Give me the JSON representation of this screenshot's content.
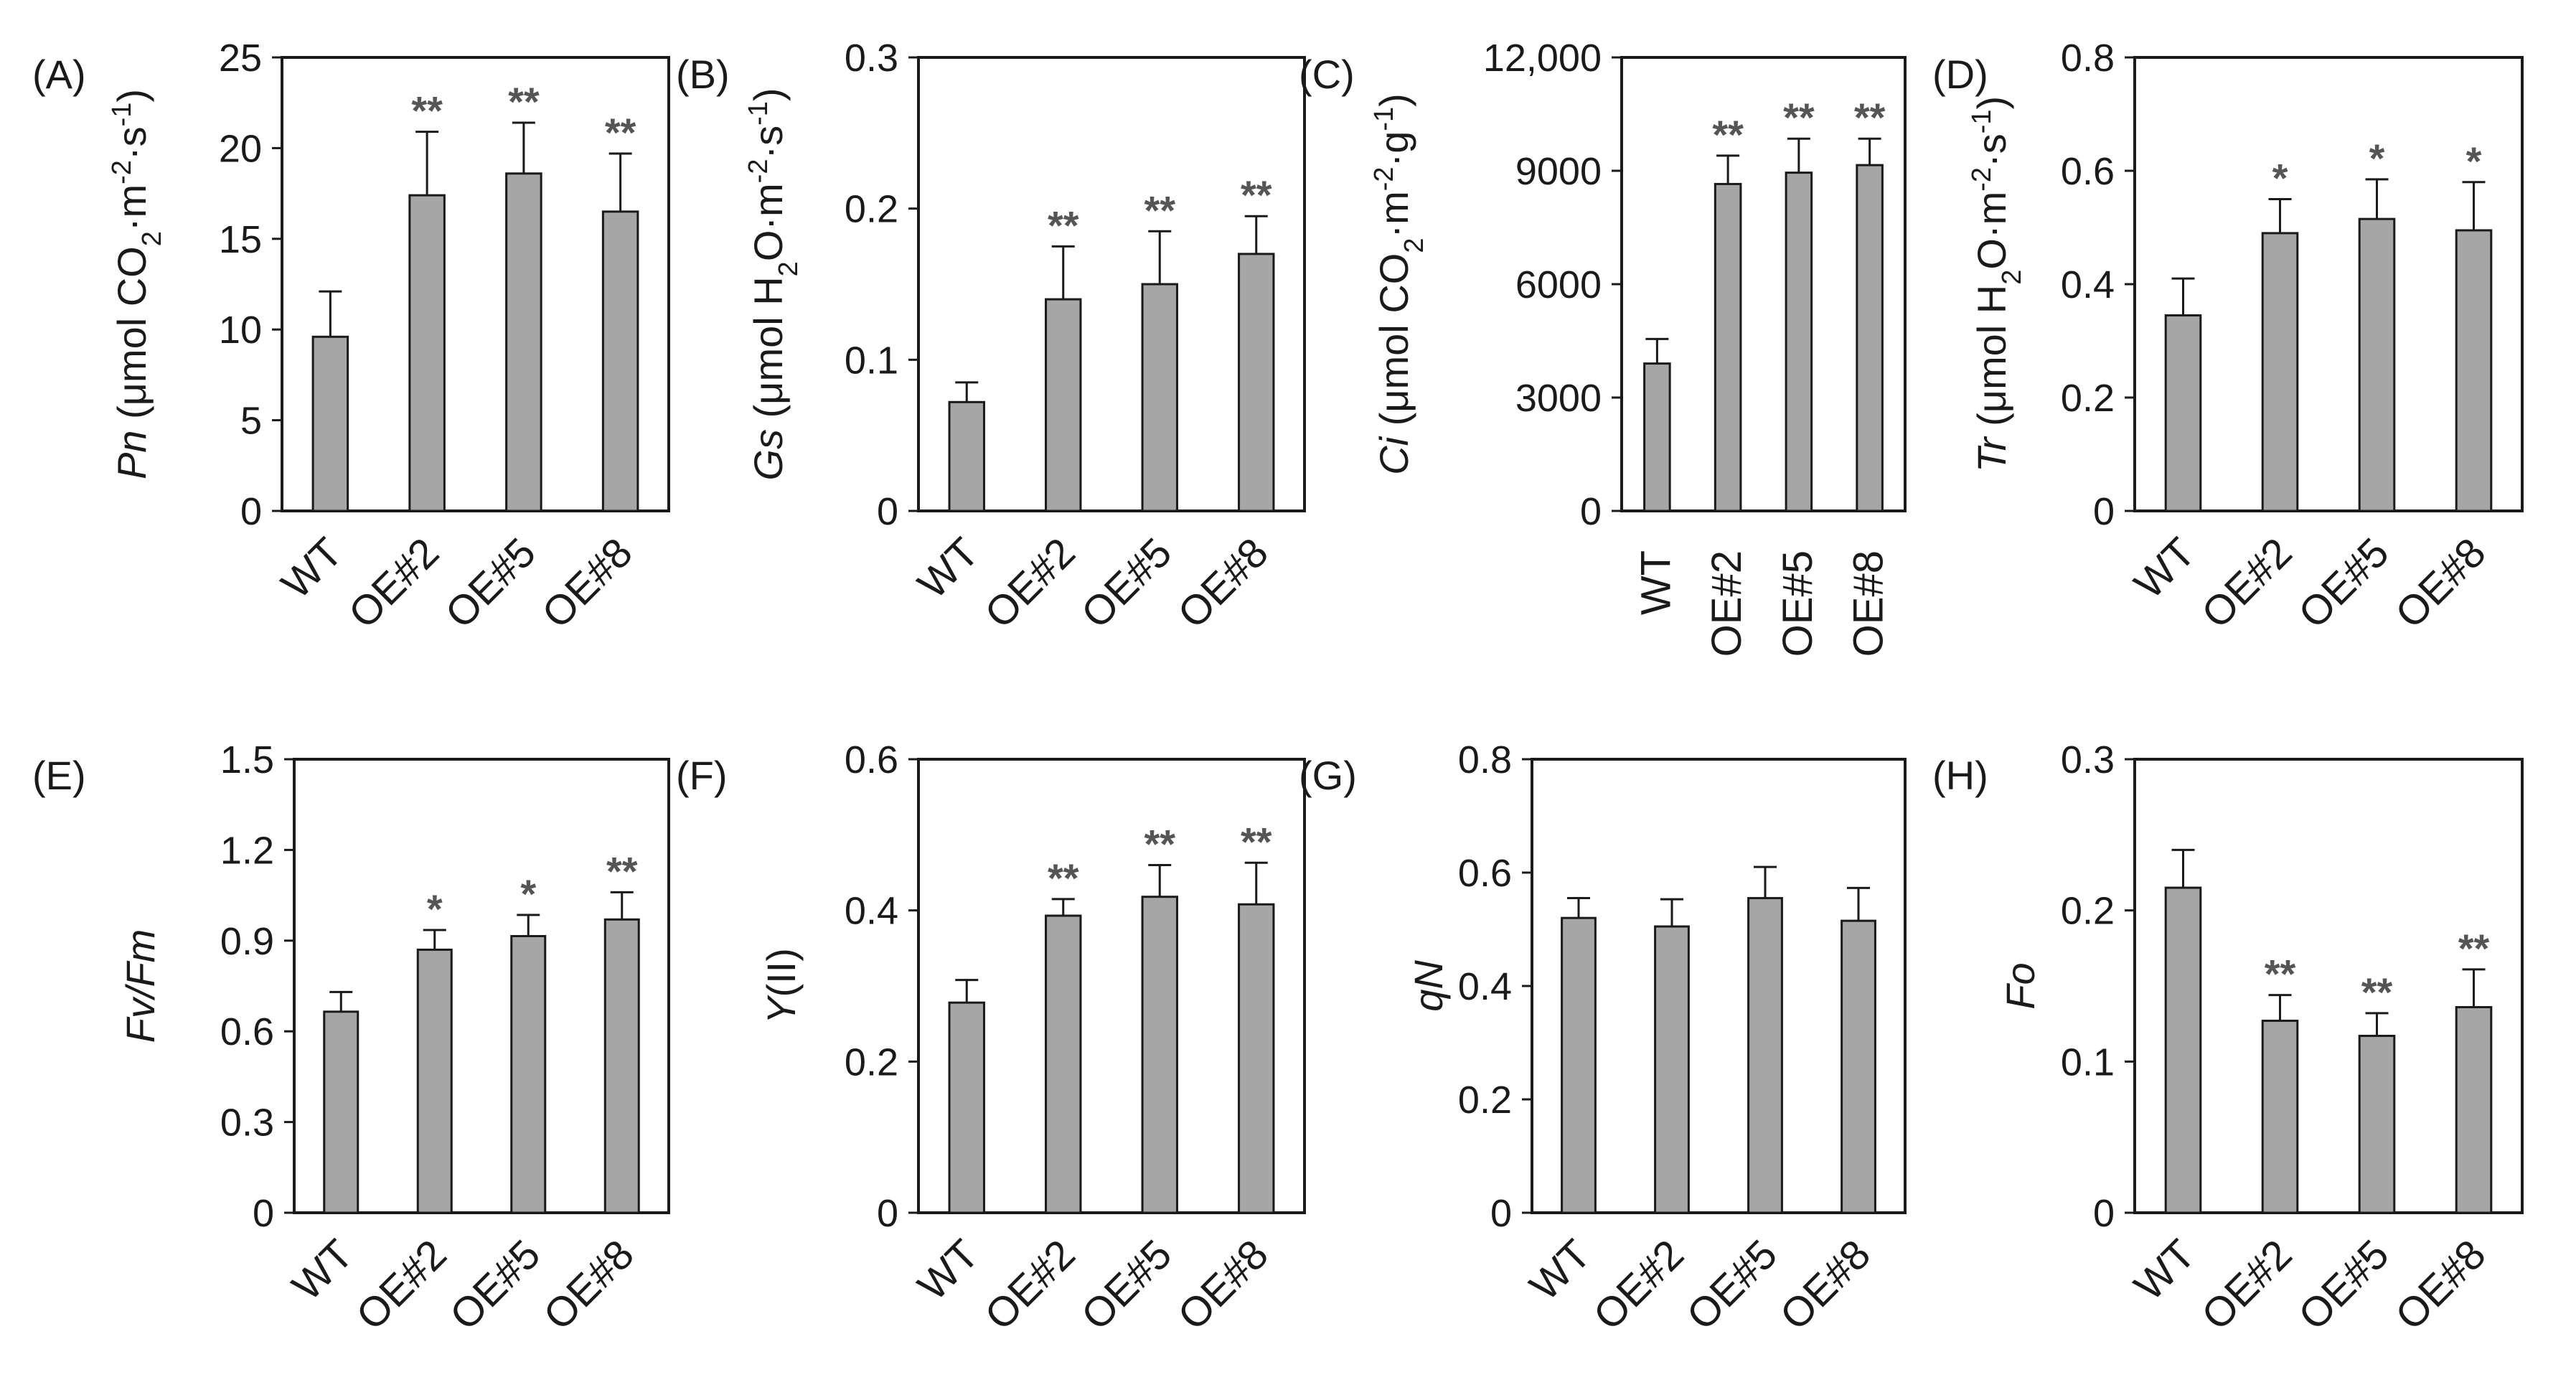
{
  "figure": {
    "colors": {
      "bar_fill": "#a6a6a6",
      "axis": "#1a1a1a",
      "significance": "#555555"
    }
  },
  "chart_data": [
    {
      "type": "bar",
      "panel": "(A)",
      "categories": [
        "WT",
        "OE#2",
        "OE#5",
        "OE#8"
      ],
      "values": [
        9.6,
        17.4,
        18.6,
        16.5
      ],
      "errors": [
        2.5,
        3.5,
        2.8,
        3.2
      ],
      "significance": [
        "",
        "**",
        "**",
        "**"
      ],
      "ylabel_parts": [
        {
          "t": "Pn",
          "s": "it"
        },
        {
          "t": " (μmol CO"
        },
        {
          "t": "2",
          "s": "sub"
        },
        {
          "t": "·m"
        },
        {
          "t": "-2",
          "s": "sup"
        },
        {
          "t": "·s"
        },
        {
          "t": "-1",
          "s": "sup"
        },
        {
          "t": ")"
        }
      ],
      "ylim": [
        0,
        25
      ],
      "yticks": [
        "0",
        "5",
        "10",
        "15",
        "20",
        "25"
      ],
      "rotated_labels": false
    },
    {
      "type": "bar",
      "panel": "(B)",
      "categories": [
        "WT",
        "OE#2",
        "OE#5",
        "OE#8"
      ],
      "values": [
        0.072,
        0.14,
        0.15,
        0.17
      ],
      "errors": [
        0.013,
        0.035,
        0.035,
        0.025
      ],
      "significance": [
        "",
        "**",
        "**",
        "**"
      ],
      "ylabel_parts": [
        {
          "t": "Gs",
          "s": "it"
        },
        {
          "t": " (μmol H"
        },
        {
          "t": "2",
          "s": "sub"
        },
        {
          "t": "O·m"
        },
        {
          "t": "-2",
          "s": "sup"
        },
        {
          "t": "·s"
        },
        {
          "t": "-1",
          "s": "sup"
        },
        {
          "t": ")"
        }
      ],
      "ylim": [
        0,
        0.3
      ],
      "yticks": [
        "0",
        "0.1",
        "0.2",
        "0.3"
      ],
      "rotated_labels": false
    },
    {
      "type": "bar",
      "panel": "(C)",
      "categories": [
        "WT",
        "OE#2",
        "OE#5",
        "OE#8"
      ],
      "values": [
        3900,
        8650,
        8950,
        9150
      ],
      "errors": [
        650,
        750,
        900,
        700
      ],
      "significance": [
        "",
        "**",
        "**",
        "**"
      ],
      "ylabel_parts": [
        {
          "t": "Ci",
          "s": "it"
        },
        {
          "t": " (μmol CO"
        },
        {
          "t": "2",
          "s": "sub"
        },
        {
          "t": "·m"
        },
        {
          "t": "-2",
          "s": "sup"
        },
        {
          "t": "·g"
        },
        {
          "t": "-1",
          "s": "sup"
        },
        {
          "t": ")"
        }
      ],
      "ylim": [
        0,
        12000
      ],
      "yticks": [
        "0",
        "3000",
        "6000",
        "9000",
        "12,000"
      ],
      "rotated_labels": true
    },
    {
      "type": "bar",
      "panel": "(D)",
      "categories": [
        "WT",
        "OE#2",
        "OE#5",
        "OE#8"
      ],
      "values": [
        0.345,
        0.49,
        0.515,
        0.495
      ],
      "errors": [
        0.065,
        0.06,
        0.07,
        0.085
      ],
      "significance": [
        "",
        "*",
        "*",
        "*"
      ],
      "ylabel_parts": [
        {
          "t": "Tr",
          "s": "it"
        },
        {
          "t": " (μmol H"
        },
        {
          "t": "2",
          "s": "sub"
        },
        {
          "t": "O·m"
        },
        {
          "t": "-2",
          "s": "sup"
        },
        {
          "t": "·s"
        },
        {
          "t": "-1",
          "s": "sup"
        },
        {
          "t": ")"
        }
      ],
      "ylim": [
        0,
        0.8
      ],
      "yticks": [
        "0",
        "0.2",
        "0.4",
        "0.6",
        "0.8"
      ],
      "rotated_labels": false
    },
    {
      "type": "bar",
      "panel": "(E)",
      "categories": [
        "WT",
        "OE#2",
        "OE#5",
        "OE#8"
      ],
      "values": [
        0.665,
        0.87,
        0.915,
        0.97
      ],
      "errors": [
        0.065,
        0.065,
        0.07,
        0.09
      ],
      "significance": [
        "",
        "*",
        "*",
        "**"
      ],
      "ylabel_parts": [
        {
          "t": "Fv/Fm",
          "s": "it"
        }
      ],
      "ylim": [
        0,
        1.5
      ],
      "yticks": [
        "0",
        "0.3",
        "0.6",
        "0.9",
        "1.2",
        "1.5"
      ],
      "rotated_labels": false
    },
    {
      "type": "bar",
      "panel": "(F)",
      "categories": [
        "WT",
        "OE#2",
        "OE#5",
        "OE#8"
      ],
      "values": [
        0.278,
        0.393,
        0.418,
        0.408
      ],
      "errors": [
        0.03,
        0.022,
        0.042,
        0.055
      ],
      "significance": [
        "",
        "**",
        "**",
        "**"
      ],
      "ylabel_parts": [
        {
          "t": "Y",
          "s": "it"
        },
        {
          "t": "(II)"
        }
      ],
      "ylim": [
        0,
        0.6
      ],
      "yticks": [
        "0",
        "0.2",
        "0.4",
        "0.6"
      ],
      "rotated_labels": false
    },
    {
      "type": "bar",
      "panel": "(G)",
      "categories": [
        "WT",
        "OE#2",
        "OE#5",
        "OE#8"
      ],
      "values": [
        0.52,
        0.505,
        0.555,
        0.515
      ],
      "errors": [
        0.035,
        0.048,
        0.055,
        0.058
      ],
      "significance": [
        "",
        "",
        "",
        ""
      ],
      "ylabel_parts": [
        {
          "t": "qN",
          "s": "it"
        }
      ],
      "ylim": [
        0,
        0.8
      ],
      "yticks": [
        "0",
        "0.2",
        "0.4",
        "0.6",
        "0.8"
      ],
      "rotated_labels": false
    },
    {
      "type": "bar",
      "panel": "(H)",
      "categories": [
        "WT",
        "OE#2",
        "OE#5",
        "OE#8"
      ],
      "values": [
        0.215,
        0.127,
        0.117,
        0.136
      ],
      "errors": [
        0.025,
        0.017,
        0.015,
        0.025
      ],
      "significance": [
        "",
        "**",
        "**",
        "**"
      ],
      "ylabel_parts": [
        {
          "t": "Fo",
          "s": "it"
        }
      ],
      "ylim": [
        0,
        0.3
      ],
      "yticks": [
        "0",
        "0.1",
        "0.2",
        "0.3"
      ],
      "rotated_labels": false
    }
  ]
}
